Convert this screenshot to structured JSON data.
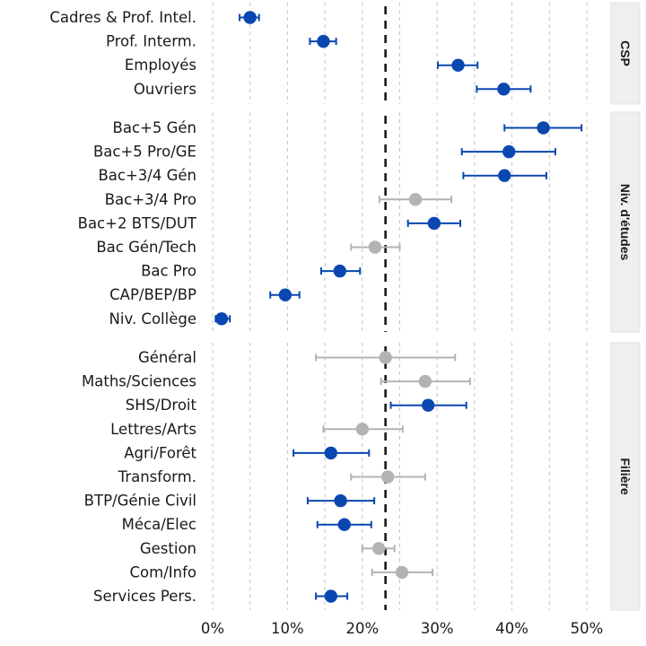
{
  "chart_data": {
    "type": "scatter",
    "subtype": "point-range faceted by group",
    "title": "",
    "xlabel": "",
    "ylabel": "",
    "xlim": [
      0,
      52
    ],
    "x_ticks": [
      0,
      10,
      20,
      30,
      40,
      50
    ],
    "x_tick_labels": [
      "0%",
      "10%",
      "20%",
      "30%",
      "40%",
      "50%"
    ],
    "minor_gridlines": [
      5,
      15,
      25,
      35,
      45
    ],
    "grid": "vertical dashed",
    "reference_line": {
      "value": 23.1,
      "style": "dashed",
      "color": "#1a1a1a"
    },
    "colors": {
      "significant": "#0a47b0",
      "not_significant": "#b3b3b3",
      "strip_bg": "#efefef"
    },
    "facets": [
      {
        "strip_label": "CSP",
        "rows": [
          {
            "label": "Cadres & Prof. Intel.",
            "value": 5.0,
            "low": 3.6,
            "high": 6.2,
            "significant": true
          },
          {
            "label": "Prof. Interm.",
            "value": 14.8,
            "low": 13.0,
            "high": 16.5,
            "significant": true
          },
          {
            "label": "Employés",
            "value": 32.8,
            "low": 30.1,
            "high": 35.4,
            "significant": true
          },
          {
            "label": "Ouvriers",
            "value": 38.9,
            "low": 35.3,
            "high": 42.5,
            "significant": true
          }
        ]
      },
      {
        "strip_label": "Niv. d'études",
        "rows": [
          {
            "label": "Bac+5 Gén",
            "value": 44.2,
            "low": 39.0,
            "high": 49.3,
            "significant": true
          },
          {
            "label": "Bac+5 Pro/GE",
            "value": 39.6,
            "low": 33.3,
            "high": 45.8,
            "significant": true
          },
          {
            "label": "Bac+3/4 Gén",
            "value": 39.0,
            "low": 33.5,
            "high": 44.6,
            "significant": true
          },
          {
            "label": "Bac+3/4 Pro",
            "value": 27.1,
            "low": 22.3,
            "high": 31.9,
            "significant": false
          },
          {
            "label": "Bac+2 BTS/DUT",
            "value": 29.6,
            "low": 26.1,
            "high": 33.1,
            "significant": true
          },
          {
            "label": "Bac Gén/Tech",
            "value": 21.7,
            "low": 18.5,
            "high": 25.0,
            "significant": false
          },
          {
            "label": "Bac Pro",
            "value": 17.0,
            "low": 14.5,
            "high": 19.7,
            "significant": true
          },
          {
            "label": "CAP/BEP/BP",
            "value": 9.7,
            "low": 7.7,
            "high": 11.6,
            "significant": true
          },
          {
            "label": "Niv. Collège",
            "value": 1.2,
            "low": 0.4,
            "high": 2.3,
            "significant": true
          }
        ]
      },
      {
        "strip_label": "Filière",
        "rows": [
          {
            "label": "Général",
            "value": 23.1,
            "low": 13.8,
            "high": 32.4,
            "significant": false
          },
          {
            "label": "Maths/Sciences",
            "value": 28.4,
            "low": 22.5,
            "high": 34.4,
            "significant": false
          },
          {
            "label": "SHS/Droit",
            "value": 28.8,
            "low": 23.8,
            "high": 33.9,
            "significant": true
          },
          {
            "label": "Lettres/Arts",
            "value": 20.0,
            "low": 14.8,
            "high": 25.4,
            "significant": false
          },
          {
            "label": "Agri/Forêt",
            "value": 15.8,
            "low": 10.8,
            "high": 20.9,
            "significant": true
          },
          {
            "label": "Transform.",
            "value": 23.4,
            "low": 18.5,
            "high": 28.4,
            "significant": false
          },
          {
            "label": "BTP/Génie Civil",
            "value": 17.1,
            "low": 12.7,
            "high": 21.6,
            "significant": true
          },
          {
            "label": "Méca/Elec",
            "value": 17.6,
            "low": 14.0,
            "high": 21.2,
            "significant": true
          },
          {
            "label": "Gestion",
            "value": 22.2,
            "low": 20.0,
            "high": 24.3,
            "significant": false
          },
          {
            "label": "Com/Info",
            "value": 25.3,
            "low": 21.3,
            "high": 29.4,
            "significant": false
          },
          {
            "label": "Services Pers.",
            "value": 15.8,
            "low": 13.8,
            "high": 18.0,
            "significant": true
          }
        ]
      }
    ]
  }
}
